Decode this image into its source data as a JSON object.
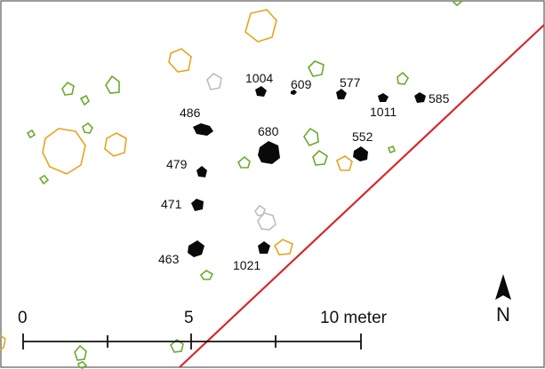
{
  "colors": {
    "black_feature": "#0a0a0a",
    "green_outline": "#6aaa2c",
    "orange_outline": "#e8a31e",
    "grey_outline": "#bdbdbd",
    "trench_line": "#d6282b",
    "frame": "#5a5a5a"
  },
  "features": [
    {
      "id": "f1004",
      "label": "1004"
    },
    {
      "id": "f609",
      "label": "609"
    },
    {
      "id": "f577",
      "label": "577"
    },
    {
      "id": "f1011",
      "label": "1011"
    },
    {
      "id": "f585",
      "label": "585"
    },
    {
      "id": "f486",
      "label": "486"
    },
    {
      "id": "f680",
      "label": "680"
    },
    {
      "id": "f552",
      "label": "552"
    },
    {
      "id": "f479",
      "label": "479"
    },
    {
      "id": "f471",
      "label": "471"
    },
    {
      "id": "f463",
      "label": "463"
    },
    {
      "id": "f1021",
      "label": "1021"
    }
  ],
  "scale_bar": {
    "labels": [
      "0",
      "5",
      "10 meter"
    ]
  },
  "north_arrow": {
    "icon": "north-arrow-icon",
    "label": "N"
  }
}
